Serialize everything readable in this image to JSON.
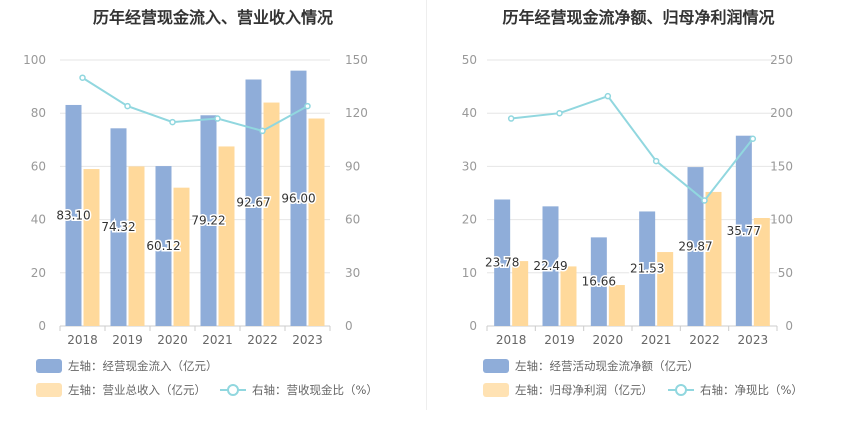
{
  "colors": {
    "bar1": "#8fadd9",
    "bar2": "#ffd99b",
    "line": "#91d7df",
    "grid": "#e6e6e6",
    "axis_text": "#999999"
  },
  "charts": [
    {
      "title": "历年经营现金流入、营业收入情况",
      "legend": {
        "bar1": "左轴：经营现金流入（亿元）",
        "bar2": "左轴：营业总收入（亿元）",
        "line": "右轴：营收现金比（%）"
      },
      "chart_data": {
        "type": "bar",
        "categories": [
          "2018",
          "2019",
          "2020",
          "2021",
          "2022",
          "2023"
        ],
        "series": [
          {
            "name": "左轴：经营现金流入（亿元）",
            "axis": "left",
            "values": [
              83.1,
              74.32,
              60.12,
              79.22,
              92.67,
              96.0
            ],
            "data_labels": [
              "83.10",
              "74.32",
              "60.12",
              "79.22",
              "92.67",
              "96.00"
            ]
          },
          {
            "name": "左轴：营业总收入（亿元）",
            "axis": "left",
            "values": [
              59,
              60,
              52,
              67.5,
              84,
              78
            ]
          },
          {
            "name": "右轴：营收现金比（%）",
            "axis": "right",
            "type": "line",
            "values": [
              140,
              124,
              115,
              117,
              110,
              124
            ]
          }
        ],
        "left_axis": {
          "ylim": [
            0,
            100
          ],
          "ticks": [
            "0",
            "20",
            "40",
            "60",
            "80",
            "100"
          ]
        },
        "right_axis": {
          "ylim": [
            0,
            150
          ],
          "ticks": [
            "0",
            "30",
            "60",
            "90",
            "120",
            "150"
          ]
        },
        "grid": true,
        "legend_position": "bottom"
      }
    },
    {
      "title": "历年经营现金流净额、归母净利润情况",
      "legend": {
        "bar1": "左轴：经营活动现金流净额（亿元）",
        "bar2": "左轴：归母净利润（亿元）",
        "line": "右轴：净现比（%）"
      },
      "chart_data": {
        "type": "bar",
        "categories": [
          "2018",
          "2019",
          "2020",
          "2021",
          "2022",
          "2023"
        ],
        "series": [
          {
            "name": "左轴：经营活动现金流净额（亿元）",
            "axis": "left",
            "values": [
              23.78,
              22.49,
              16.66,
              21.53,
              29.87,
              35.77
            ],
            "data_labels": [
              "23.78",
              "22.49",
              "16.66",
              "21.53",
              "29.87",
              "35.77"
            ]
          },
          {
            "name": "左轴：归母净利润（亿元）",
            "axis": "left",
            "values": [
              12.2,
              11.2,
              7.7,
              13.9,
              25.2,
              20.3
            ]
          },
          {
            "name": "右轴：净现比（%）",
            "axis": "right",
            "type": "line",
            "values": [
              195,
              200,
              216,
              155,
              118,
              176
            ]
          }
        ],
        "left_axis": {
          "ylim": [
            0,
            50
          ],
          "ticks": [
            "0",
            "10",
            "20",
            "30",
            "40",
            "50"
          ]
        },
        "right_axis": {
          "ylim": [
            0,
            250
          ],
          "ticks": [
            "0",
            "50",
            "100",
            "150",
            "200",
            "250"
          ]
        },
        "grid": true,
        "legend_position": "bottom"
      }
    }
  ]
}
